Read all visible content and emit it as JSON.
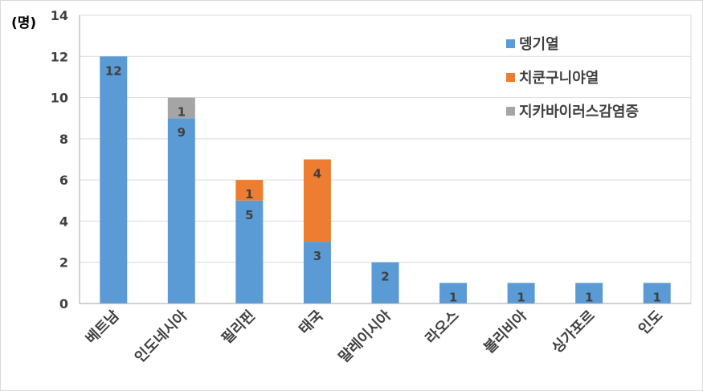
{
  "chart_data": {
    "type": "bar",
    "stacked": true,
    "y_unit": "(명)",
    "categories": [
      "베트남",
      "인도네시아",
      "필리핀",
      "태국",
      "말레이시아",
      "라오스",
      "볼리비아",
      "싱가포르",
      "인도"
    ],
    "series": [
      {
        "name": "뎅기열",
        "color": "#5b9bd5",
        "values": [
          12,
          9,
          5,
          3,
          2,
          1,
          1,
          1,
          1
        ]
      },
      {
        "name": "치쿤구니야열",
        "color": "#ed7d31",
        "values": [
          0,
          0,
          1,
          4,
          0,
          0,
          0,
          0,
          0
        ]
      },
      {
        "name": "지카바이러스감염증",
        "color": "#a5a5a5",
        "values": [
          0,
          1,
          0,
          0,
          0,
          0,
          0,
          0,
          0
        ]
      }
    ],
    "ylim": [
      0,
      14
    ],
    "yticks": [
      0,
      2,
      4,
      6,
      8,
      10,
      12,
      14
    ],
    "grid": true,
    "legend_position": "top-right"
  }
}
